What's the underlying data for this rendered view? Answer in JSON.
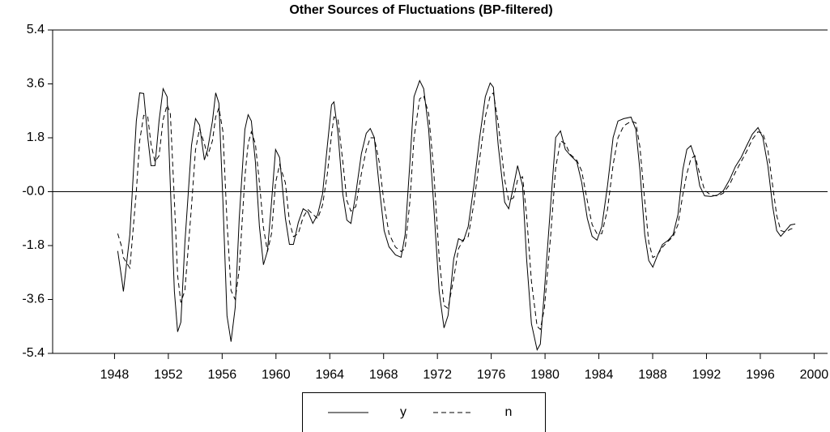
{
  "chart_data": {
    "type": "line",
    "title": "Other Sources of Fluctuations (BP-filtered)",
    "x": [
      1948.24,
      1948.54,
      1948.66,
      1949.14,
      1949.62,
      1949.87,
      1950.17,
      1950.47,
      1950.71,
      1951.01,
      1951.31,
      1951.61,
      1951.91,
      1952.15,
      1952.45,
      1952.69,
      1952.93,
      1953.23,
      1953.72,
      1954.02,
      1954.32,
      1954.68,
      1954.92,
      1955.28,
      1955.52,
      1955.76,
      1956.06,
      1956.36,
      1956.66,
      1956.97,
      1957.27,
      1957.69,
      1957.93,
      1958.17,
      1958.47,
      1958.77,
      1959.07,
      1959.37,
      1959.67,
      1959.97,
      1960.27,
      1960.7,
      1961.0,
      1961.3,
      1961.66,
      1962.02,
      1962.38,
      1962.74,
      1963.1,
      1963.46,
      1963.82,
      1964.13,
      1964.31,
      1964.61,
      1964.97,
      1965.27,
      1965.57,
      1965.93,
      1966.35,
      1966.71,
      1967.01,
      1967.31,
      1967.67,
      1968.04,
      1968.4,
      1968.88,
      1969.3,
      1969.6,
      1969.96,
      1970.26,
      1970.68,
      1970.98,
      1971.35,
      1971.71,
      1972.13,
      1972.49,
      1972.79,
      1973.21,
      1973.57,
      1973.93,
      1974.29,
      1974.71,
      1975.14,
      1975.56,
      1975.92,
      1976.16,
      1976.52,
      1977.0,
      1977.3,
      1977.66,
      1977.96,
      1978.33,
      1978.63,
      1978.99,
      1979.41,
      1979.65,
      1979.95,
      1980.43,
      1980.79,
      1981.15,
      1981.51,
      1981.87,
      1982.36,
      1982.72,
      1983.14,
      1983.5,
      1983.86,
      1984.22,
      1984.64,
      1985.06,
      1985.42,
      1985.85,
      1986.39,
      1986.75,
      1987.05,
      1987.41,
      1987.71,
      1988.01,
      1988.37,
      1988.73,
      1989.16,
      1989.52,
      1989.88,
      1990.24,
      1990.54,
      1990.84,
      1991.14,
      1991.5,
      1991.86,
      1992.34,
      1992.83,
      1993.25,
      1993.73,
      1994.15,
      1994.57,
      1994.99,
      1995.41,
      1995.83,
      1996.19,
      1996.56,
      1996.92,
      1997.22,
      1997.52,
      1997.88,
      1998.24,
      1998.6
    ],
    "series": [
      {
        "name": "y",
        "color": "#000000",
        "dash": false,
        "values": [
          -1.98,
          -2.92,
          -3.33,
          -1.43,
          2.36,
          3.3,
          3.28,
          1.81,
          0.87,
          0.87,
          2.36,
          3.44,
          3.17,
          0.19,
          -3.33,
          -4.68,
          -4.36,
          -1.71,
          1.54,
          2.44,
          2.22,
          1.06,
          1.41,
          2.36,
          3.3,
          2.95,
          -0.35,
          -4.14,
          -5.01,
          -3.87,
          -0.89,
          2.08,
          2.57,
          2.36,
          1.0,
          -1.16,
          -2.44,
          -1.98,
          -0.35,
          1.41,
          1.14,
          -0.89,
          -1.76,
          -1.76,
          -1.03,
          -0.57,
          -0.68,
          -1.06,
          -0.76,
          -0.08,
          1.54,
          2.9,
          3.0,
          1.95,
          -0.08,
          -0.95,
          -1.06,
          -0.08,
          1.27,
          1.95,
          2.11,
          1.81,
          0.19,
          -1.3,
          -1.84,
          -2.11,
          -2.19,
          -1.43,
          1.0,
          3.17,
          3.71,
          3.44,
          2.08,
          -0.35,
          -3.33,
          -4.55,
          -4.14,
          -2.25,
          -1.57,
          -1.65,
          -1.16,
          0.19,
          1.81,
          3.17,
          3.63,
          3.49,
          1.54,
          -0.35,
          -0.57,
          0.19,
          0.87,
          0.19,
          -2.25,
          -4.41,
          -5.28,
          -5.09,
          -3.33,
          -0.35,
          1.81,
          2.03,
          1.41,
          1.22,
          1.0,
          0.32,
          -0.89,
          -1.49,
          -1.62,
          -1.16,
          0.19,
          1.81,
          2.36,
          2.44,
          2.49,
          2.08,
          0.73,
          -1.43,
          -2.3,
          -2.52,
          -2.11,
          -1.76,
          -1.62,
          -1.43,
          -0.76,
          0.73,
          1.41,
          1.54,
          1.14,
          0.19,
          -0.14,
          -0.16,
          -0.11,
          0.03,
          0.41,
          0.84,
          1.14,
          1.54,
          1.92,
          2.14,
          1.81,
          0.87,
          -0.49,
          -1.3,
          -1.49,
          -1.3,
          -1.11,
          -1.08
        ]
      },
      {
        "name": "n",
        "color": "#000000",
        "dash": true,
        "values": [
          -1.4,
          -1.85,
          -2.2,
          -2.55,
          0.0,
          1.7,
          2.55,
          2.5,
          1.6,
          1.0,
          1.2,
          2.4,
          2.9,
          2.6,
          -0.3,
          -2.8,
          -3.7,
          -3.3,
          -0.5,
          1.4,
          2.1,
          1.6,
          1.2,
          1.7,
          2.5,
          2.8,
          2.0,
          -1.0,
          -3.3,
          -3.6,
          -2.6,
          0.5,
          1.6,
          2.0,
          1.6,
          0.3,
          -1.2,
          -2.0,
          -1.4,
          0.3,
          0.9,
          0.3,
          -1.0,
          -1.5,
          -1.4,
          -0.85,
          -0.6,
          -0.75,
          -0.9,
          -0.45,
          0.6,
          1.9,
          2.5,
          2.4,
          1.0,
          -0.3,
          -0.65,
          -0.5,
          0.6,
          1.4,
          1.8,
          1.8,
          1.0,
          -0.4,
          -1.4,
          -1.85,
          -2.0,
          -1.9,
          -0.3,
          1.8,
          3.1,
          3.2,
          2.6,
          0.8,
          -2.2,
          -3.8,
          -3.9,
          -2.9,
          -1.9,
          -1.6,
          -1.5,
          -0.4,
          1.1,
          2.5,
          3.2,
          3.3,
          2.3,
          0.4,
          -0.3,
          -0.2,
          0.4,
          0.5,
          -0.8,
          -3.0,
          -4.5,
          -4.6,
          -3.9,
          -1.4,
          0.8,
          1.7,
          1.6,
          1.25,
          1.05,
          0.7,
          -0.3,
          -1.1,
          -1.4,
          -1.4,
          -0.6,
          0.9,
          1.8,
          2.2,
          2.35,
          2.3,
          1.5,
          -0.3,
          -1.7,
          -2.2,
          -2.1,
          -1.85,
          -1.65,
          -1.5,
          -1.1,
          -0.1,
          0.6,
          1.1,
          1.2,
          0.6,
          0.05,
          -0.12,
          -0.14,
          -0.05,
          0.25,
          0.65,
          1.0,
          1.35,
          1.75,
          2.0,
          1.95,
          1.4,
          0.2,
          -0.8,
          -1.3,
          -1.35,
          -1.25,
          -1.2
        ]
      }
    ],
    "xlim": [
      1943.4,
      2001.0
    ],
    "xticks": [
      1948,
      1952,
      1956,
      1960,
      1964,
      1968,
      1972,
      1976,
      1980,
      1984,
      1988,
      1992,
      1996,
      2000
    ],
    "ylim": [
      -5.4,
      5.4
    ],
    "yticks": [
      5.4,
      3.6,
      1.8,
      {
        "value": 0,
        "label": "-0.0"
      },
      -1.8,
      -3.6,
      -5.4
    ],
    "zero_line": true,
    "legend": "bottom"
  }
}
